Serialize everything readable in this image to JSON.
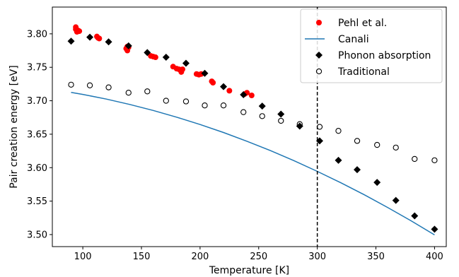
{
  "chart_data": {
    "type": "scatter",
    "title": "",
    "xlabel": "Temperature [K]",
    "ylabel": "Pair creation energy [eV]",
    "xlim": [
      74,
      410
    ],
    "ylim": [
      3.482,
      3.84
    ],
    "xticks": [
      100,
      150,
      200,
      250,
      300,
      350,
      400
    ],
    "yticks": [
      3.5,
      3.55,
      3.6,
      3.65,
      3.7,
      3.75,
      3.8
    ],
    "ytick_labels": [
      "3.50",
      "3.55",
      "3.60",
      "3.65",
      "3.70",
      "3.75",
      "3.80"
    ],
    "grid": false,
    "legend_position": "top-right",
    "vline": {
      "x": 300,
      "style": "dashed",
      "color": "#000000"
    },
    "series": [
      {
        "name": "Pehl et al.",
        "kind": "scatter",
        "marker": "circle-filled",
        "color": "#ff0000",
        "x": [
          94,
          94,
          95,
          96,
          97,
          112,
          113,
          114,
          137,
          138,
          138,
          139,
          158,
          160,
          162,
          177,
          180,
          182,
          184,
          185,
          197,
          199,
          201,
          210,
          211,
          225,
          238,
          240,
          244
        ],
        "y": [
          3.81,
          3.807,
          3.803,
          3.805,
          3.804,
          3.796,
          3.794,
          3.793,
          3.778,
          3.775,
          3.781,
          3.78,
          3.767,
          3.766,
          3.765,
          3.751,
          3.748,
          3.747,
          3.743,
          3.747,
          3.74,
          3.739,
          3.74,
          3.729,
          3.727,
          3.715,
          3.71,
          3.712,
          3.708
        ]
      },
      {
        "name": "Canali",
        "kind": "line",
        "color": "#1f77b4",
        "x": [
          90,
          100,
          120,
          140,
          160,
          180,
          200,
          220,
          240,
          260,
          280,
          300,
          320,
          340,
          360,
          380,
          400
        ],
        "y": [
          3.7125,
          3.7095,
          3.7025,
          3.6945,
          3.6855,
          3.6755,
          3.6645,
          3.6525,
          3.6395,
          3.6255,
          3.6105,
          3.5945,
          3.5775,
          3.5595,
          3.5405,
          3.5205,
          3.4995
        ]
      },
      {
        "name": "Phonon absorption",
        "kind": "scatter",
        "marker": "diamond-filled",
        "color": "#000000",
        "x": [
          90,
          106,
          122,
          139,
          155,
          171,
          188,
          204,
          220,
          237,
          253,
          269,
          285,
          302,
          318,
          334,
          351,
          367,
          383,
          400
        ],
        "y": [
          3.789,
          3.795,
          3.788,
          3.782,
          3.772,
          3.765,
          3.756,
          3.741,
          3.721,
          3.709,
          3.692,
          3.68,
          3.662,
          3.64,
          3.611,
          3.597,
          3.578,
          3.551,
          3.528,
          3.508
        ]
      },
      {
        "name": "Traditional",
        "kind": "scatter",
        "marker": "circle-open",
        "color": "#000000",
        "x": [
          90,
          106,
          122,
          139,
          155,
          171,
          188,
          204,
          220,
          237,
          253,
          269,
          285,
          302,
          318,
          334,
          351,
          367,
          383,
          400
        ],
        "y": [
          3.724,
          3.723,
          3.72,
          3.712,
          3.714,
          3.7,
          3.699,
          3.693,
          3.693,
          3.683,
          3.677,
          3.67,
          3.665,
          3.661,
          3.655,
          3.64,
          3.634,
          3.63,
          3.613,
          3.611
        ]
      }
    ]
  }
}
